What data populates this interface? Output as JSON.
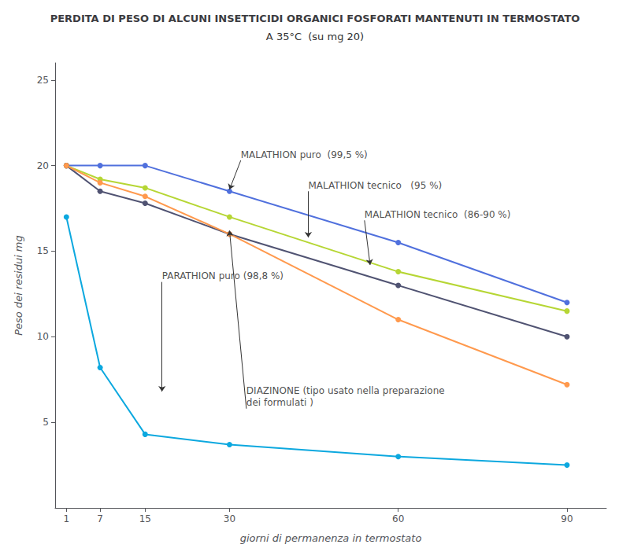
{
  "chart_data": {
    "type": "line",
    "title": "PERDITA DI PESO DI ALCUNI INSETTICIDI ORGANICI FOSFORATI MANTENUTI IN TERMOSTATO",
    "subtitle": "A 35°C  (su mg 20)",
    "xlabel": "giorni di permanenza in termostato",
    "ylabel": "Peso dei residui mg",
    "x": [
      1,
      7,
      15,
      30,
      60,
      90
    ],
    "series": [
      {
        "values": [
          20.0,
          20.0,
          20.0,
          18.5,
          15.5,
          12.0
        ]
      },
      {
        "values": [
          20.0,
          19.2,
          18.7,
          17.0,
          13.8,
          11.5
        ]
      },
      {
        "values": [
          20.0,
          18.5,
          17.8,
          16.0,
          13.0,
          10.0
        ]
      },
      {
        "values": [
          20.0,
          19.0,
          18.2,
          16.0,
          11.0,
          7.2
        ]
      },
      {
        "values": [
          17.0,
          8.2,
          4.3,
          3.7,
          3.0,
          2.5
        ]
      }
    ],
    "xlim": [
      -1,
      97
    ],
    "xticks": [
      1,
      7,
      15,
      30,
      60,
      90
    ],
    "ylim": [
      0,
      26
    ],
    "yticks": [
      5,
      10,
      15,
      20,
      25
    ],
    "grid": false,
    "marker": "circle",
    "annotations": [
      {
        "text": "MALATHION puro  (99,5 %)",
        "xytext": [
          32,
          20.3
        ],
        "xy": [
          30,
          18.6
        ]
      },
      {
        "text": "MALATHION tecnico   (95 %)",
        "xytext": [
          44,
          18.5
        ],
        "xy": [
          44,
          15.8
        ]
      },
      {
        "text": "MALATHION tecnico  (86-90 %)",
        "xytext": [
          54,
          16.8
        ],
        "xy": [
          55,
          14.2
        ]
      },
      {
        "text": "PARATHION puro (98,8 %)",
        "xytext": [
          18,
          13.2
        ],
        "xy": [
          18,
          6.8
        ]
      },
      {
        "text": "DIAZINONE (tipo usato nella preparazione\ndei formulati )",
        "xytext": [
          33,
          5.8
        ],
        "xy": [
          30,
          16.2
        ]
      }
    ]
  }
}
